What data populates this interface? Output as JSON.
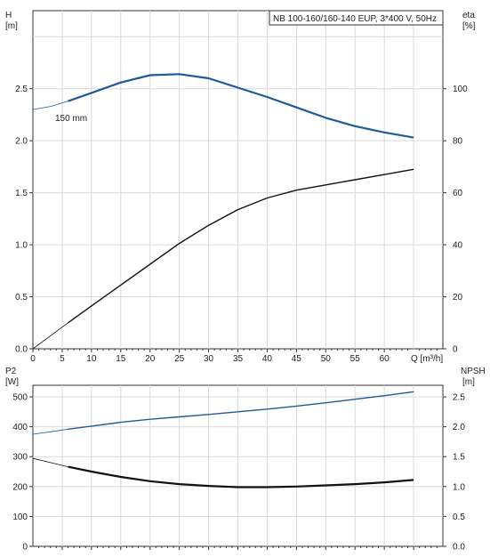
{
  "chart_data": [
    {
      "type": "line",
      "title": "NB 100-160/160-140 EUP, 3*400 V, 50Hz",
      "xlabel": "Q [m³/h]",
      "ylabel": [
        "H",
        "[m]"
      ],
      "y2label": [
        "eta",
        "[%]"
      ],
      "xlim": [
        0,
        70
      ],
      "ylim": [
        0,
        3.25
      ],
      "y2lim": [
        0,
        130
      ],
      "x_ticks": [
        "0",
        "5",
        "10",
        "15",
        "20",
        "25",
        "30",
        "35",
        "40",
        "45",
        "50",
        "55",
        "60"
      ],
      "y_ticks": [
        "0.0",
        "0.5",
        "1.0",
        "1.5",
        "2.0",
        "2.5"
      ],
      "y2_ticks": [
        "0",
        "20",
        "40",
        "60",
        "80",
        "100"
      ],
      "grid": true,
      "annotation": "150 mm",
      "series": [
        {
          "axis": "left",
          "color": "#1f5a9a",
          "extrapolated_from": 0,
          "extrapolation_end": 6,
          "x": [
            0,
            3,
            6,
            10,
            15,
            20,
            25,
            30,
            35,
            40,
            45,
            50,
            55,
            60,
            65
          ],
          "y": [
            2.3,
            2.33,
            2.38,
            2.46,
            2.56,
            2.63,
            2.64,
            2.6,
            2.51,
            2.42,
            2.32,
            2.22,
            2.14,
            2.08,
            2.03
          ]
        },
        {
          "axis": "right",
          "color": "#111111",
          "extrapolated_from": 0,
          "extrapolation_end": 6,
          "x": [
            0,
            6,
            10,
            15,
            20,
            25,
            30,
            35,
            40,
            45,
            50,
            55,
            60,
            65
          ],
          "y": [
            0,
            10,
            16.5,
            24.5,
            32.5,
            40.5,
            47.5,
            53.5,
            58,
            61,
            63,
            65,
            67,
            69
          ]
        }
      ]
    },
    {
      "type": "line",
      "xlabel": "",
      "ylabel": [
        "P2",
        "[W]"
      ],
      "y2label": [
        "NPSH",
        "[m]"
      ],
      "xlim": [
        0,
        70
      ],
      "ylim": [
        0,
        500
      ],
      "y2lim": [
        0,
        2.5
      ],
      "y_ticks": [
        "0",
        "100",
        "200",
        "300",
        "400",
        "500"
      ],
      "y2_ticks": [
        "0.0",
        "0.5",
        "1.0",
        "1.5",
        "2.0",
        "2.5"
      ],
      "grid": true,
      "series": [
        {
          "axis": "left",
          "color": "#1f5a9a",
          "extrapolated_from": 0,
          "extrapolation_end": 6,
          "x": [
            0,
            3,
            6,
            10,
            15,
            20,
            25,
            30,
            35,
            40,
            45,
            50,
            55,
            60,
            65
          ],
          "y": [
            375,
            383,
            392,
            402,
            415,
            425,
            433,
            441,
            450,
            459,
            469,
            480,
            492,
            504,
            517
          ]
        },
        {
          "axis": "right",
          "color": "#111111",
          "extrapolated_from": 0,
          "extrapolation_end": 6,
          "x": [
            0,
            3,
            6,
            10,
            15,
            20,
            25,
            30,
            35,
            40,
            45,
            50,
            55,
            60,
            65
          ],
          "y": [
            1.47,
            1.4,
            1.33,
            1.25,
            1.16,
            1.09,
            1.04,
            1.01,
            0.99,
            0.99,
            1.0,
            1.02,
            1.04,
            1.07,
            1.11
          ]
        }
      ]
    }
  ]
}
